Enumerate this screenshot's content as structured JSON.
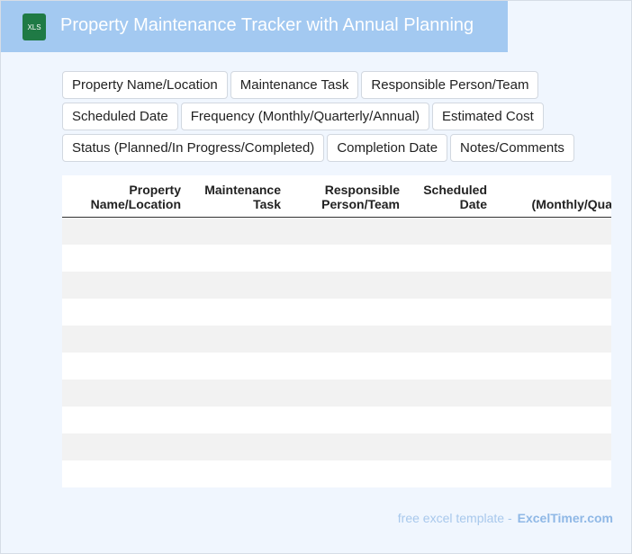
{
  "header": {
    "icon": "XLS",
    "title": "Property Maintenance Tracker with Annual Planning"
  },
  "tags": [
    "Property Name/Location",
    "Maintenance Task",
    "Responsible Person/Team",
    "Scheduled Date",
    "Frequency (Monthly/Quarterly/Annual)",
    "Estimated Cost",
    "Status (Planned/In Progress/Completed)",
    "Completion Date",
    "Notes/Comments"
  ],
  "table": {
    "columns": [
      "Property Name/Location",
      "Maintenance Task",
      "Responsible Person/Team",
      "Scheduled Date",
      "Frequency (Monthly/Quarterly/Annual)"
    ]
  },
  "footer": {
    "text": "free excel template -",
    "link": "ExcelTimer.com"
  }
}
